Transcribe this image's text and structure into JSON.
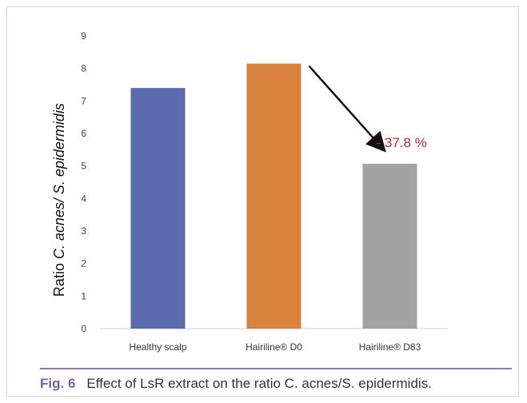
{
  "chart_data": {
    "type": "bar",
    "categories": [
      "Healthy scalp",
      "Hairiline® D0",
      "Hairiline® D83"
    ],
    "values": [
      7.4,
      8.15,
      5.07
    ],
    "bar_colors": [
      "#5b6bb0",
      "#d9823e",
      "#a3a3a3"
    ],
    "ylabel_plain": "Ratio ",
    "ylabel_italic": "C. acnes/ S. epidermidis",
    "ylim": [
      0,
      9
    ],
    "yticks": [
      0,
      1,
      2,
      3,
      4,
      5,
      6,
      7,
      8,
      9
    ],
    "grid": false,
    "annotation": {
      "text": "-  37.8 %",
      "from_category": "Hairiline® D0",
      "to_category": "Hairiline® D83",
      "color": "#c0262d"
    }
  },
  "caption": {
    "label": "Fig. 6",
    "text": "Effect of LsR extract on the ratio C. acnes/S. epidermidis."
  },
  "colors": {
    "caption_accent": "#7b5ea7",
    "arrow": "#111111"
  }
}
